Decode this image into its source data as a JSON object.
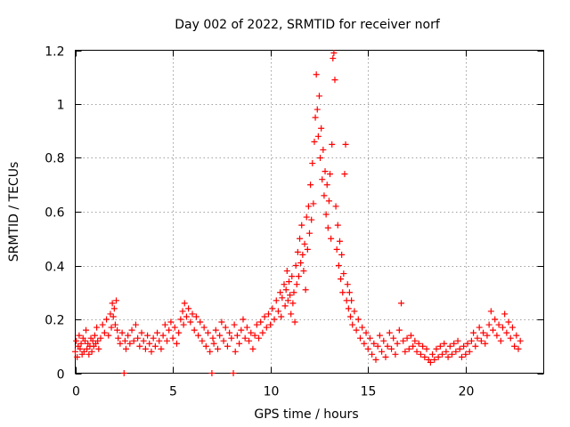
{
  "chart_data": {
    "type": "scatter",
    "title": "Day 002 of 2022, SRMTID for receiver norf",
    "xlabel": "GPS time / hours",
    "ylabel": "SRMTID / TECUs",
    "xlim": [
      0,
      24
    ],
    "ylim": [
      0,
      1.2
    ],
    "x_ticks": [
      0,
      5,
      10,
      15,
      20
    ],
    "y_ticks": [
      0,
      0.2,
      0.4,
      0.6,
      0.8,
      1.0,
      1.2
    ],
    "x_tick_labels": [
      "0",
      "5",
      "10",
      "15",
      "20"
    ],
    "y_tick_labels": [
      "0",
      "0.2",
      "0.4",
      "0.6",
      "0.8",
      "1",
      "1.2"
    ],
    "grid": true,
    "marker": "+",
    "color": "#ff0000",
    "series": [
      {
        "name": "SRMTID",
        "points": [
          [
            0.0,
            0.08
          ],
          [
            0.05,
            0.12
          ],
          [
            0.1,
            0.06
          ],
          [
            0.15,
            0.1
          ],
          [
            0.2,
            0.14
          ],
          [
            0.25,
            0.09
          ],
          [
            0.3,
            0.11
          ],
          [
            0.35,
            0.07
          ],
          [
            0.4,
            0.13
          ],
          [
            0.45,
            0.08
          ],
          [
            0.5,
            0.12
          ],
          [
            0.55,
            0.16
          ],
          [
            0.6,
            0.09
          ],
          [
            0.65,
            0.11
          ],
          [
            0.7,
            0.07
          ],
          [
            0.75,
            0.1
          ],
          [
            0.8,
            0.13
          ],
          [
            0.85,
            0.08
          ],
          [
            0.9,
            0.12
          ],
          [
            0.95,
            0.1
          ],
          [
            1.0,
            0.14
          ],
          [
            1.05,
            0.11
          ],
          [
            1.1,
            0.17
          ],
          [
            1.15,
            0.12
          ],
          [
            1.2,
            0.09
          ],
          [
            1.3,
            0.13
          ],
          [
            1.4,
            0.18
          ],
          [
            1.5,
            0.15
          ],
          [
            1.6,
            0.2
          ],
          [
            1.7,
            0.14
          ],
          [
            1.8,
            0.22
          ],
          [
            1.85,
            0.17
          ],
          [
            1.9,
            0.26
          ],
          [
            1.95,
            0.21
          ],
          [
            2.0,
            0.24
          ],
          [
            2.05,
            0.18
          ],
          [
            2.1,
            0.27
          ],
          [
            2.15,
            0.16
          ],
          [
            2.2,
            0.13
          ],
          [
            2.3,
            0.11
          ],
          [
            2.4,
            0.15
          ],
          [
            2.5,
            0.0
          ],
          [
            2.55,
            0.12
          ],
          [
            2.6,
            0.09
          ],
          [
            2.7,
            0.14
          ],
          [
            2.8,
            0.11
          ],
          [
            2.9,
            0.16
          ],
          [
            3.0,
            0.12
          ],
          [
            3.1,
            0.18
          ],
          [
            3.2,
            0.13
          ],
          [
            3.3,
            0.1
          ],
          [
            3.4,
            0.15
          ],
          [
            3.5,
            0.12
          ],
          [
            3.6,
            0.09
          ],
          [
            3.7,
            0.14
          ],
          [
            3.8,
            0.11
          ],
          [
            3.9,
            0.08
          ],
          [
            4.0,
            0.13
          ],
          [
            4.1,
            0.1
          ],
          [
            4.2,
            0.15
          ],
          [
            4.3,
            0.12
          ],
          [
            4.4,
            0.09
          ],
          [
            4.5,
            0.14
          ],
          [
            4.6,
            0.18
          ],
          [
            4.7,
            0.12
          ],
          [
            4.8,
            0.16
          ],
          [
            4.9,
            0.19
          ],
          [
            5.0,
            0.13
          ],
          [
            5.1,
            0.17
          ],
          [
            5.2,
            0.11
          ],
          [
            5.3,
            0.15
          ],
          [
            5.4,
            0.2
          ],
          [
            5.5,
            0.23
          ],
          [
            5.55,
            0.18
          ],
          [
            5.6,
            0.26
          ],
          [
            5.7,
            0.21
          ],
          [
            5.8,
            0.24
          ],
          [
            5.9,
            0.19
          ],
          [
            6.0,
            0.22
          ],
          [
            6.1,
            0.16
          ],
          [
            6.2,
            0.21
          ],
          [
            6.3,
            0.14
          ],
          [
            6.4,
            0.19
          ],
          [
            6.5,
            0.12
          ],
          [
            6.6,
            0.17
          ],
          [
            6.7,
            0.1
          ],
          [
            6.8,
            0.15
          ],
          [
            6.9,
            0.08
          ],
          [
            7.0,
            0.0
          ],
          [
            7.05,
            0.13
          ],
          [
            7.1,
            0.11
          ],
          [
            7.2,
            0.16
          ],
          [
            7.3,
            0.09
          ],
          [
            7.4,
            0.14
          ],
          [
            7.5,
            0.19
          ],
          [
            7.6,
            0.12
          ],
          [
            7.7,
            0.17
          ],
          [
            7.8,
            0.1
          ],
          [
            7.9,
            0.15
          ],
          [
            8.0,
            0.13
          ],
          [
            8.1,
            0.0
          ],
          [
            8.15,
            0.18
          ],
          [
            8.2,
            0.08
          ],
          [
            8.3,
            0.14
          ],
          [
            8.4,
            0.11
          ],
          [
            8.5,
            0.16
          ],
          [
            8.6,
            0.2
          ],
          [
            8.7,
            0.13
          ],
          [
            8.8,
            0.17
          ],
          [
            8.9,
            0.12
          ],
          [
            9.0,
            0.15
          ],
          [
            9.1,
            0.09
          ],
          [
            9.2,
            0.14
          ],
          [
            9.3,
            0.18
          ],
          [
            9.4,
            0.13
          ],
          [
            9.5,
            0.19
          ],
          [
            9.6,
            0.15
          ],
          [
            9.7,
            0.21
          ],
          [
            9.8,
            0.17
          ],
          [
            9.9,
            0.22
          ],
          [
            10.0,
            0.18
          ],
          [
            10.1,
            0.24
          ],
          [
            10.2,
            0.2
          ],
          [
            10.3,
            0.27
          ],
          [
            10.4,
            0.23
          ],
          [
            10.5,
            0.3
          ],
          [
            10.55,
            0.21
          ],
          [
            10.6,
            0.28
          ],
          [
            10.7,
            0.33
          ],
          [
            10.75,
            0.25
          ],
          [
            10.8,
            0.31
          ],
          [
            10.85,
            0.38
          ],
          [
            10.9,
            0.27
          ],
          [
            10.95,
            0.34
          ],
          [
            11.0,
            0.29
          ],
          [
            11.05,
            0.22
          ],
          [
            11.1,
            0.36
          ],
          [
            11.15,
            0.26
          ],
          [
            11.2,
            0.3
          ],
          [
            11.25,
            0.19
          ],
          [
            11.3,
            0.4
          ],
          [
            11.35,
            0.33
          ],
          [
            11.4,
            0.45
          ],
          [
            11.45,
            0.36
          ],
          [
            11.5,
            0.5
          ],
          [
            11.55,
            0.41
          ],
          [
            11.6,
            0.55
          ],
          [
            11.65,
            0.44
          ],
          [
            11.7,
            0.38
          ],
          [
            11.75,
            0.48
          ],
          [
            11.8,
            0.31
          ],
          [
            11.85,
            0.58
          ],
          [
            11.9,
            0.46
          ],
          [
            11.95,
            0.62
          ],
          [
            12.0,
            0.52
          ],
          [
            12.05,
            0.7
          ],
          [
            12.1,
            0.57
          ],
          [
            12.15,
            0.78
          ],
          [
            12.2,
            0.63
          ],
          [
            12.25,
            0.86
          ],
          [
            12.3,
            0.95
          ],
          [
            12.35,
            1.11
          ],
          [
            12.4,
            0.98
          ],
          [
            12.45,
            0.88
          ],
          [
            12.5,
            1.03
          ],
          [
            12.55,
            0.8
          ],
          [
            12.6,
            0.91
          ],
          [
            12.65,
            0.72
          ],
          [
            12.7,
            0.83
          ],
          [
            12.75,
            0.66
          ],
          [
            12.8,
            0.75
          ],
          [
            12.85,
            0.59
          ],
          [
            12.9,
            0.7
          ],
          [
            12.95,
            0.54
          ],
          [
            13.0,
            0.64
          ],
          [
            13.05,
            0.74
          ],
          [
            13.1,
            0.5
          ],
          [
            13.15,
            0.85
          ],
          [
            13.2,
            1.17
          ],
          [
            13.25,
            1.19
          ],
          [
            13.3,
            1.09
          ],
          [
            13.35,
            0.62
          ],
          [
            13.4,
            0.46
          ],
          [
            13.45,
            0.55
          ],
          [
            13.5,
            0.4
          ],
          [
            13.55,
            0.49
          ],
          [
            13.6,
            0.35
          ],
          [
            13.65,
            0.44
          ],
          [
            13.7,
            0.3
          ],
          [
            13.75,
            0.37
          ],
          [
            13.8,
            0.74
          ],
          [
            13.85,
            0.85
          ],
          [
            13.9,
            0.27
          ],
          [
            13.95,
            0.33
          ],
          [
            14.0,
            0.24
          ],
          [
            14.05,
            0.3
          ],
          [
            14.1,
            0.21
          ],
          [
            14.15,
            0.27
          ],
          [
            14.2,
            0.18
          ],
          [
            14.3,
            0.23
          ],
          [
            14.4,
            0.16
          ],
          [
            14.5,
            0.2
          ],
          [
            14.6,
            0.13
          ],
          [
            14.7,
            0.17
          ],
          [
            14.8,
            0.11
          ],
          [
            14.9,
            0.15
          ],
          [
            15.0,
            0.09
          ],
          [
            15.1,
            0.13
          ],
          [
            15.2,
            0.07
          ],
          [
            15.3,
            0.11
          ],
          [
            15.4,
            0.05
          ],
          [
            15.5,
            0.1
          ],
          [
            15.6,
            0.14
          ],
          [
            15.7,
            0.08
          ],
          [
            15.8,
            0.12
          ],
          [
            15.9,
            0.06
          ],
          [
            16.0,
            0.1
          ],
          [
            16.1,
            0.15
          ],
          [
            16.2,
            0.09
          ],
          [
            16.3,
            0.13
          ],
          [
            16.4,
            0.07
          ],
          [
            16.5,
            0.11
          ],
          [
            16.6,
            0.16
          ],
          [
            16.7,
            0.26
          ],
          [
            16.8,
            0.12
          ],
          [
            16.9,
            0.08
          ],
          [
            17.0,
            0.13
          ],
          [
            17.1,
            0.09
          ],
          [
            17.2,
            0.14
          ],
          [
            17.3,
            0.1
          ],
          [
            17.4,
            0.12
          ],
          [
            17.5,
            0.08
          ],
          [
            17.6,
            0.11
          ],
          [
            17.7,
            0.07
          ],
          [
            17.8,
            0.1
          ],
          [
            17.9,
            0.06
          ],
          [
            18.0,
            0.09
          ],
          [
            18.1,
            0.05
          ],
          [
            18.2,
            0.04
          ],
          [
            18.3,
            0.07
          ],
          [
            18.4,
            0.05
          ],
          [
            18.5,
            0.09
          ],
          [
            18.6,
            0.06
          ],
          [
            18.7,
            0.1
          ],
          [
            18.8,
            0.07
          ],
          [
            18.9,
            0.11
          ],
          [
            19.0,
            0.08
          ],
          [
            19.1,
            0.06
          ],
          [
            19.2,
            0.1
          ],
          [
            19.3,
            0.07
          ],
          [
            19.4,
            0.11
          ],
          [
            19.5,
            0.08
          ],
          [
            19.6,
            0.12
          ],
          [
            19.7,
            0.09
          ],
          [
            19.8,
            0.06
          ],
          [
            19.9,
            0.1
          ],
          [
            20.0,
            0.07
          ],
          [
            20.1,
            0.11
          ],
          [
            20.2,
            0.08
          ],
          [
            20.3,
            0.12
          ],
          [
            20.4,
            0.15
          ],
          [
            20.5,
            0.1
          ],
          [
            20.6,
            0.13
          ],
          [
            20.7,
            0.17
          ],
          [
            20.8,
            0.12
          ],
          [
            20.9,
            0.15
          ],
          [
            21.0,
            0.11
          ],
          [
            21.1,
            0.14
          ],
          [
            21.2,
            0.18
          ],
          [
            21.3,
            0.23
          ],
          [
            21.4,
            0.16
          ],
          [
            21.5,
            0.2
          ],
          [
            21.6,
            0.14
          ],
          [
            21.7,
            0.18
          ],
          [
            21.8,
            0.12
          ],
          [
            21.9,
            0.17
          ],
          [
            22.0,
            0.22
          ],
          [
            22.1,
            0.15
          ],
          [
            22.2,
            0.19
          ],
          [
            22.3,
            0.13
          ],
          [
            22.4,
            0.17
          ],
          [
            22.5,
            0.1
          ],
          [
            22.6,
            0.14
          ],
          [
            22.7,
            0.09
          ],
          [
            22.8,
            0.12
          ]
        ]
      }
    ]
  }
}
